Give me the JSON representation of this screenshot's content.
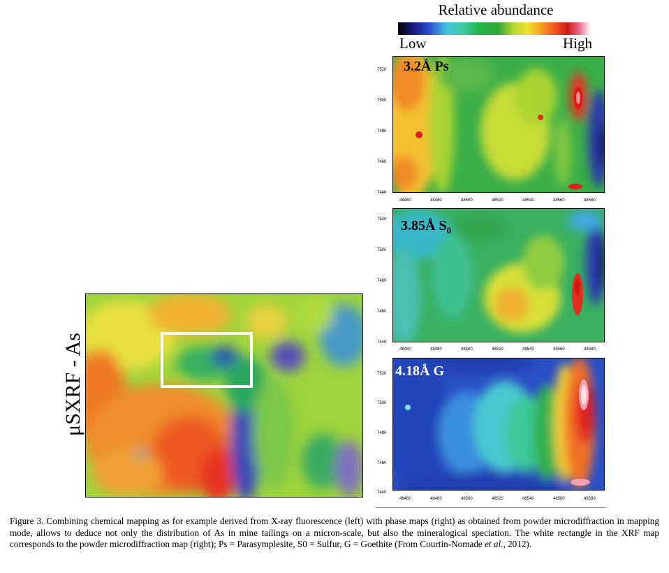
{
  "legend": {
    "title": "Relative abundance",
    "low": "Low",
    "high": "High",
    "colors": [
      "#000000",
      "#1a1a80",
      "#2233c8",
      "#3a7de0",
      "#44c3e0",
      "#3ccca0",
      "#21b54a",
      "#33a83a",
      "#9ad030",
      "#e0e030",
      "#f4b020",
      "#f07020",
      "#e02020",
      "#d01a1a",
      "#e05870",
      "#f0b0c0",
      "#ffffff"
    ]
  },
  "xrf_map": {
    "label": "μSXRF - As"
  },
  "panels": [
    {
      "label": "3.2Å Ps",
      "y_ticks": [
        "7520",
        "7500",
        "7480",
        "7460",
        "7440"
      ],
      "x_ticks": [
        "48460",
        "48480",
        "48500",
        "48520",
        "48540",
        "48560",
        "48580"
      ]
    },
    {
      "label": "3.85Å S",
      "label_sub": "0",
      "y_ticks": [
        "7520",
        "7500",
        "7480",
        "7460",
        "7440"
      ],
      "x_ticks": [
        "48460",
        "48480",
        "48500",
        "48520",
        "48540",
        "48560",
        "48580"
      ]
    },
    {
      "label": "4.18Å G",
      "y_ticks": [
        "7520",
        "7500",
        "7480",
        "7460",
        "7440"
      ],
      "x_ticks": [
        "48460",
        "48480",
        "48500",
        "48520",
        "48540",
        "48560",
        "48580"
      ]
    }
  ],
  "caption": {
    "part1": "Figure 3. Combining chemical mapping as for example derived from X-ray fluorescence (left) with phase maps (right) as obtained from powder microdiffraction in mapping mode, allows to deduce not only the distribution of As in mine tailings on a micron-scale, but also the mineralogical speciation. The white rectangle in the XRF map corresponds to the powder microdiffraction map (right); Ps = Parasymplesite, S0 = Sulfur, G = Goethite (From Courtin-Nomade ",
    "italic": "et al",
    "part2": "., 2012)."
  }
}
